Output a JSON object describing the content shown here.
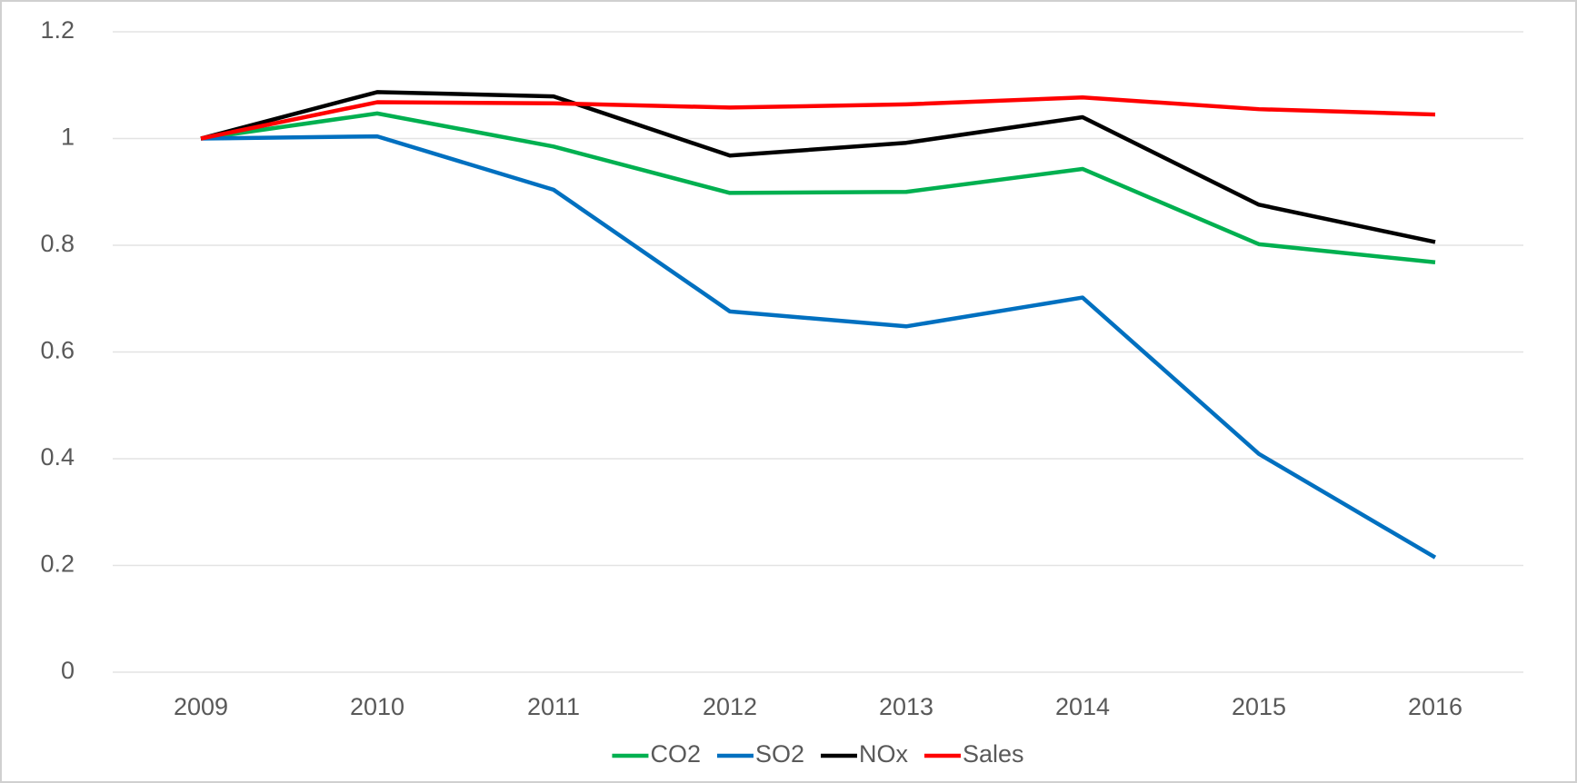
{
  "chart_data": {
    "type": "line",
    "categories": [
      "2009",
      "2010",
      "2011",
      "2012",
      "2013",
      "2014",
      "2015",
      "2016"
    ],
    "series": [
      {
        "name": "CO2",
        "color": "#00b050",
        "values": [
          1.0,
          1.047,
          0.985,
          0.898,
          0.9,
          0.943,
          0.802,
          0.768
        ]
      },
      {
        "name": "SO2",
        "color": "#0070c0",
        "values": [
          1.0,
          1.004,
          0.904,
          0.676,
          0.648,
          0.702,
          0.409,
          0.215
        ]
      },
      {
        "name": "NOx",
        "color": "#000000",
        "values": [
          1.0,
          1.087,
          1.079,
          0.968,
          0.992,
          1.04,
          0.876,
          0.806
        ]
      },
      {
        "name": "Sales",
        "color": "#ff0000",
        "values": [
          1.0,
          1.068,
          1.066,
          1.058,
          1.064,
          1.077,
          1.055,
          1.045
        ]
      }
    ],
    "ylim": [
      0,
      1.2
    ],
    "yticks": [
      0,
      0.2,
      0.4,
      0.6,
      0.8,
      1,
      1.2
    ],
    "grid": true,
    "legend": "bottom"
  }
}
